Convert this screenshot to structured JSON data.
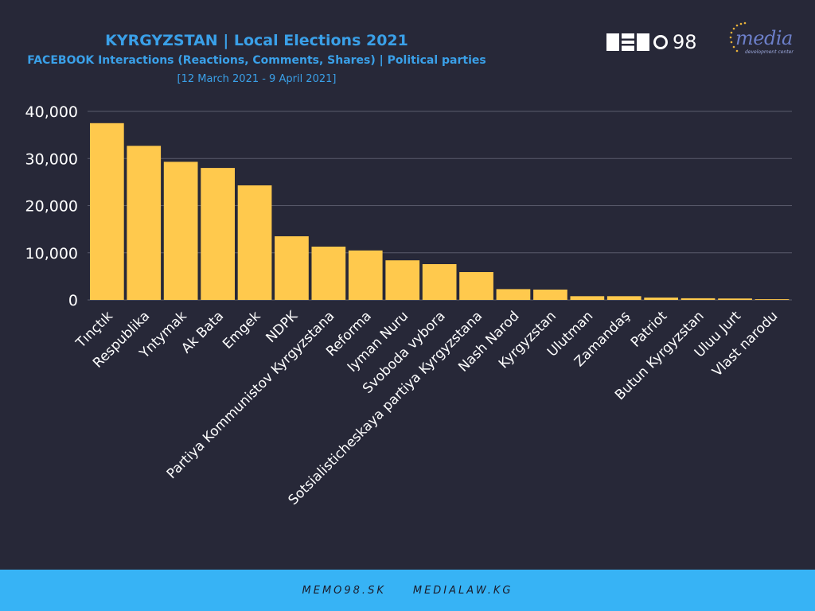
{
  "header": {
    "title": "KYRGYZSTAN | Local Elections 2021",
    "subtitle": "FACEBOOK Interactions (Reactions, Comments, Shares) | Political parties",
    "daterange": "[12 March 2021 - 9 April 2021]"
  },
  "logos": {
    "memo_number": "98",
    "media_word": "media",
    "media_small": "development center"
  },
  "footer": {
    "link1": "MEMO98.SK",
    "link2": "MEDIALAW.KG"
  },
  "colors": {
    "background": "#272838",
    "bar": "#ffc94d",
    "grid": "#5a5b6c",
    "text": "#ffffff",
    "title": "#3aa0e8",
    "footer": "#37b3f5"
  },
  "chart_data": {
    "type": "bar",
    "title": "KYRGYZSTAN | Local Elections 2021",
    "subtitle": "FACEBOOK Interactions (Reactions, Comments, Shares) | Political parties",
    "xlabel": "",
    "ylabel": "",
    "ylim": [
      0,
      40000
    ],
    "yticks": [
      "0",
      "10,000",
      "20,000",
      "30,000",
      "40,000"
    ],
    "ytick_values": [
      0,
      10000,
      20000,
      30000,
      40000
    ],
    "grid": true,
    "legend": "none",
    "categories": [
      "Tınçtık",
      "Respublika",
      "Yntymak",
      "Ak Bata",
      "Emgek",
      "NDPK",
      "Partiya Kommunistov Kyrgyzstana",
      "Reforma",
      "Iyman Nuru",
      "Svoboda vybora",
      "Sotsialisticheskaya partiya Kyrgyzstana",
      "Nash Narod",
      "Kyrgyzstan",
      "Ulutman",
      "Zamandaş",
      "Patriot",
      "Butun Kyrgyzstan",
      "Uluu Jurt",
      "Vlast narodu"
    ],
    "values": [
      37500,
      32700,
      29300,
      28000,
      24300,
      13500,
      11300,
      10500,
      8400,
      7600,
      5900,
      2300,
      2200,
      800,
      800,
      500,
      350,
      300,
      150
    ]
  }
}
